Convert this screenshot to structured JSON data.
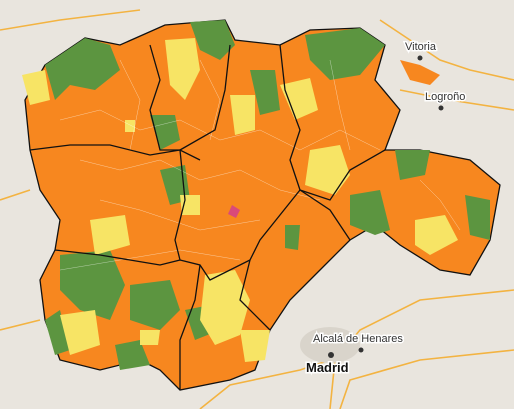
{
  "labels": [
    {
      "text": "Vitoria"
    },
    {
      "text": "Logroño"
    },
    {
      "text": "Alcalá de Henares"
    },
    {
      "text": "Madrid"
    }
  ]
}
